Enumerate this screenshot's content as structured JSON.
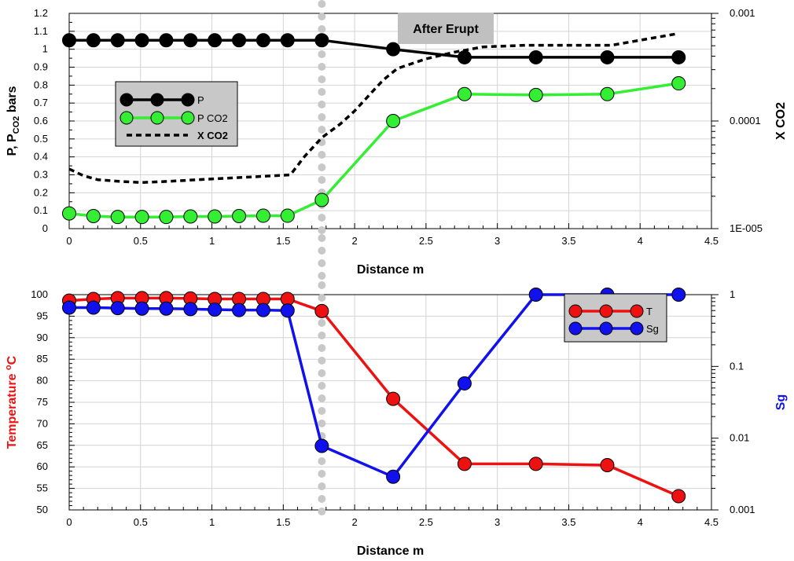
{
  "chart_data": [
    {
      "type": "line",
      "annotation": "After Erupt",
      "xlabel": "Distance m",
      "ylabel_parts": [
        "P, P",
        "CO2",
        " bars"
      ],
      "y2label": "X CO2",
      "xlim": [
        0,
        4.5
      ],
      "x_ticks": [
        0,
        0.5,
        1,
        1.5,
        2,
        2.5,
        3,
        3.5,
        4,
        4.5
      ],
      "x_tick_labels": [
        "0",
        "0.5",
        "1",
        "1.5",
        "2",
        "2.5",
        "3",
        "3.5",
        "4",
        "4.5"
      ],
      "ylim": [
        0,
        1.2
      ],
      "y_ticks": [
        0,
        0.1,
        0.2,
        0.3,
        0.4,
        0.5,
        0.6,
        0.7,
        0.8,
        0.9,
        1,
        1.1,
        1.2
      ],
      "y_tick_labels": [
        "0",
        "0.1",
        "0.2",
        "0.3",
        "0.4",
        "0.5",
        "0.6",
        "0.7",
        "0.8",
        "0.9",
        "1",
        "1.1",
        "1.2"
      ],
      "y2_scale": "log",
      "y2lim": [
        1e-05,
        0.001
      ],
      "y2_ticks": [
        1e-05,
        0.0001,
        0.001
      ],
      "y2_tick_labels": [
        "1E-005",
        "0.0001",
        "0.001"
      ],
      "grid": true,
      "legend_position": "left",
      "vertical_marker_x": 1.77,
      "series": [
        {
          "name": "P",
          "color": "#000000",
          "axis": "left",
          "markers": true,
          "x": [
            0,
            0.17,
            0.34,
            0.51,
            0.68,
            0.85,
            1.02,
            1.19,
            1.36,
            1.53,
            1.77,
            2.27,
            2.77,
            3.27,
            3.77,
            4.27
          ],
          "y": [
            1.05,
            1.05,
            1.05,
            1.05,
            1.05,
            1.05,
            1.05,
            1.05,
            1.05,
            1.05,
            1.05,
            1.0,
            0.955,
            0.955,
            0.955,
            0.955
          ]
        },
        {
          "name": "P CO2",
          "color": "#33ee33",
          "axis": "left",
          "markers": true,
          "x": [
            0,
            0.17,
            0.34,
            0.51,
            0.68,
            0.85,
            1.02,
            1.19,
            1.36,
            1.53,
            1.77,
            2.27,
            2.77,
            3.27,
            3.77,
            4.27
          ],
          "y": [
            0.085,
            0.07,
            0.065,
            0.065,
            0.065,
            0.068,
            0.068,
            0.07,
            0.072,
            0.072,
            0.16,
            0.6,
            0.75,
            0.745,
            0.75,
            0.81
          ]
        },
        {
          "name": "X CO2",
          "color": "#000000",
          "axis": "right",
          "dashed": true,
          "markers": false,
          "x": [
            0,
            0.1,
            0.2,
            0.35,
            0.5,
            0.7,
            0.9,
            1.1,
            1.3,
            1.55,
            1.65,
            1.77,
            1.9,
            2.0,
            2.1,
            2.2,
            2.3,
            2.5,
            2.7,
            2.9,
            3.2,
            3.5,
            3.8,
            4.0,
            4.27
          ],
          "y": [
            3.58e-05,
            3.1e-05,
            2.85e-05,
            2.75e-05,
            2.68e-05,
            2.75e-05,
            2.85e-05,
            2.94e-05,
            3.03e-05,
            3.16e-05,
            4.7e-05,
            7e-05,
            9.4e-05,
            0.000124,
            0.000173,
            0.00024,
            0.000308,
            0.000378,
            0.000437,
            0.000488,
            0.000505,
            0.000505,
            0.000505,
            0.000563,
            0.00065
          ]
        }
      ]
    },
    {
      "type": "line",
      "xlabel": "Distance m",
      "ylabel_parts": [
        "Temperature ",
        "o",
        "C"
      ],
      "y2label": "Sg",
      "xlim": [
        0,
        4.5
      ],
      "x_ticks": [
        0,
        0.5,
        1,
        1.5,
        2,
        2.5,
        3,
        3.5,
        4,
        4.5
      ],
      "x_tick_labels": [
        "0",
        "0.5",
        "1",
        "1.5",
        "2",
        "2.5",
        "3",
        "3.5",
        "4",
        "4.5"
      ],
      "ylim": [
        50,
        100
      ],
      "y_ticks": [
        50,
        55,
        60,
        65,
        70,
        75,
        80,
        85,
        90,
        95,
        100
      ],
      "y_tick_labels": [
        "50",
        "55",
        "60",
        "65",
        "70",
        "75",
        "80",
        "85",
        "90",
        "95",
        "100"
      ],
      "y2_scale": "log",
      "y2lim": [
        0.001,
        1
      ],
      "y2_ticks": [
        0.001,
        0.01,
        0.1,
        1
      ],
      "y2_tick_labels": [
        "0.001",
        "0.01",
        "0.1",
        "1"
      ],
      "grid": true,
      "legend_position": "top-right",
      "vertical_marker_x": 1.77,
      "series": [
        {
          "name": "T",
          "color": "#ee1111",
          "axis": "left",
          "markers": true,
          "x": [
            0,
            0.17,
            0.34,
            0.51,
            0.68,
            0.85,
            1.02,
            1.19,
            1.36,
            1.53,
            1.77,
            2.27,
            2.77,
            3.27,
            3.77,
            4.27
          ],
          "y": [
            98.6,
            99.0,
            99.2,
            99.2,
            99.2,
            99.1,
            99.0,
            99.0,
            99.0,
            99.0,
            96.2,
            75.8,
            60.7,
            60.7,
            60.4,
            53.2
          ]
        },
        {
          "name": "Sg",
          "color": "#1111ee",
          "axis": "right",
          "markers": true,
          "x": [
            0,
            0.17,
            0.34,
            0.51,
            0.68,
            0.85,
            1.02,
            1.19,
            1.36,
            1.53,
            1.77,
            2.27,
            2.77,
            3.27,
            3.77,
            4.27
          ],
          "y": [
            0.66,
            0.66,
            0.65,
            0.64,
            0.64,
            0.63,
            0.62,
            0.61,
            0.61,
            0.6,
            0.0078,
            0.0029,
            0.058,
            1.0,
            1.0,
            1.0
          ]
        }
      ]
    }
  ]
}
